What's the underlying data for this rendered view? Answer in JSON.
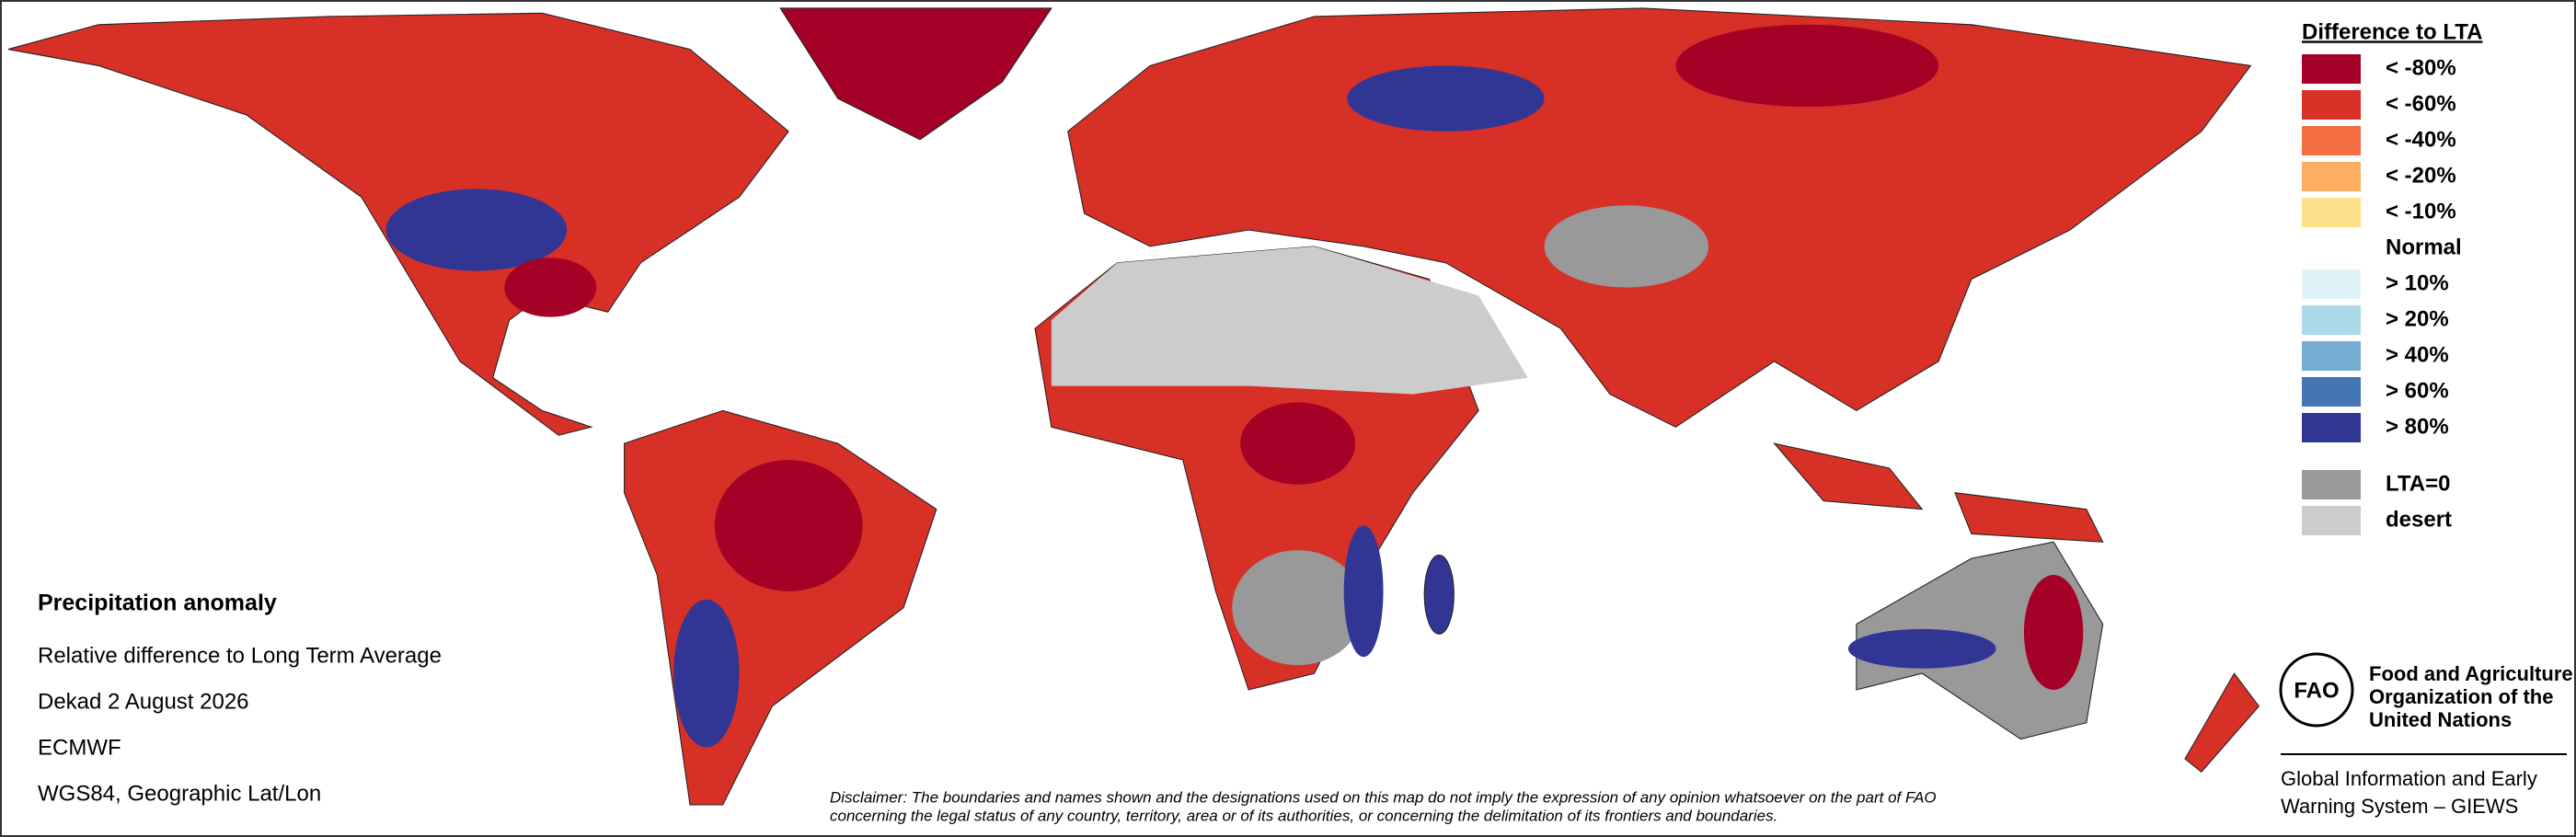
{
  "legend": {
    "title": "Difference to LTA",
    "items": [
      {
        "label": "< -80%",
        "color": "#a50026"
      },
      {
        "label": "< -60%",
        "color": "#d73027"
      },
      {
        "label": "< -40%",
        "color": "#f46d43"
      },
      {
        "label": "< -20%",
        "color": "#fdae61"
      },
      {
        "label": "< -10%",
        "color": "#fee08b"
      },
      {
        "label": "Normal"
      },
      {
        "label": "> 10%",
        "color": "#e0f3f8"
      },
      {
        "label": "> 20%",
        "color": "#abd9e9"
      },
      {
        "label": "> 40%",
        "color": "#74add1"
      },
      {
        "label": "> 60%",
        "color": "#4575b4"
      },
      {
        "label": "> 80%",
        "color": "#313695"
      }
    ],
    "masks": [
      {
        "label": "LTA=0",
        "color": "#999999"
      },
      {
        "label": "desert",
        "color": "#cccccc"
      }
    ]
  },
  "info": {
    "title": "Precipitation anomaly",
    "lines": [
      "Relative difference to Long Term Average",
      "Dekad 2 August 2026",
      "ECMWF",
      "WGS84, Geographic Lat/Lon"
    ]
  },
  "disclaimer": [
    "Disclaimer: The boundaries and names shown and the designations used on this map do not imply the expression of any opinion whatsoever on the part of FAO",
    "concerning the legal status of any country, territory, area or of its authorities, or concerning the delimitation of its frontiers and boundaries."
  ],
  "organization": {
    "logo_text": "FAO",
    "name_lines": [
      "Food and Agriculture",
      "Organization of the",
      "United Nations"
    ],
    "system_lines": [
      "Global Information and Early",
      "Warning System – GIEWS"
    ]
  }
}
